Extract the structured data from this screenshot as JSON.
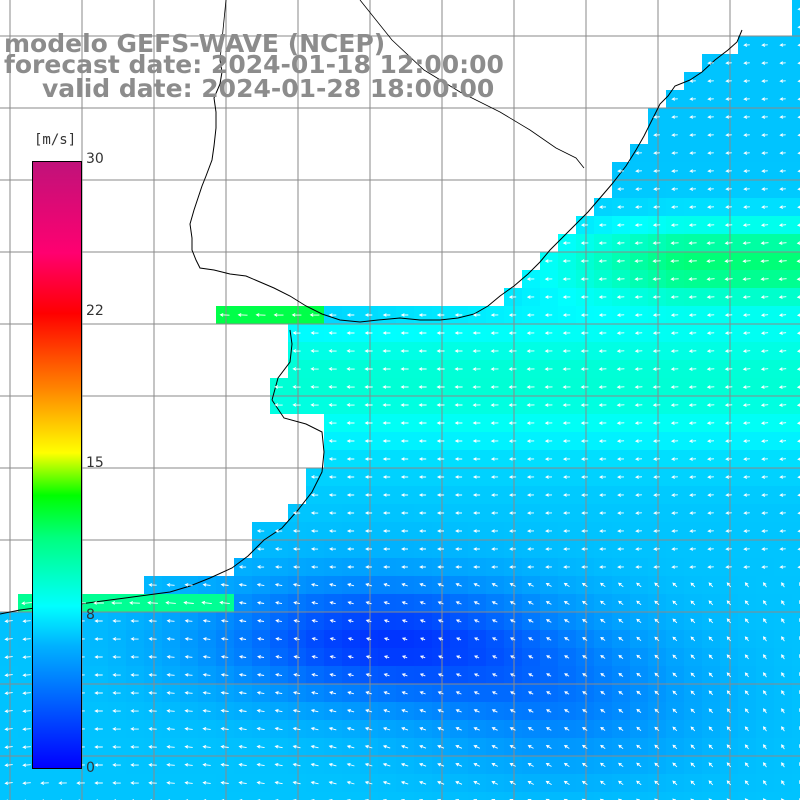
{
  "map": {
    "title_lines": [
      "modelo GEFS-WAVE (NCEP)",
      "forecast date: 2024-01-18 12:00:00",
      "valid date: 2024-01-28 18:00:00"
    ],
    "legend": {
      "unit": "[m/s]",
      "ticks": [
        {
          "label": "30",
          "value": 30
        },
        {
          "label": "22",
          "value": 22
        },
        {
          "label": "15",
          "value": 15
        },
        {
          "label": "8",
          "value": 8
        },
        {
          "label": "0",
          "value": 0
        }
      ]
    },
    "colors": {
      "land": "#ffffff",
      "grid": "#8a8a8a",
      "coast": "#000000",
      "arrow": "#ffffff",
      "title": "#8c8c8c"
    }
  }
}
